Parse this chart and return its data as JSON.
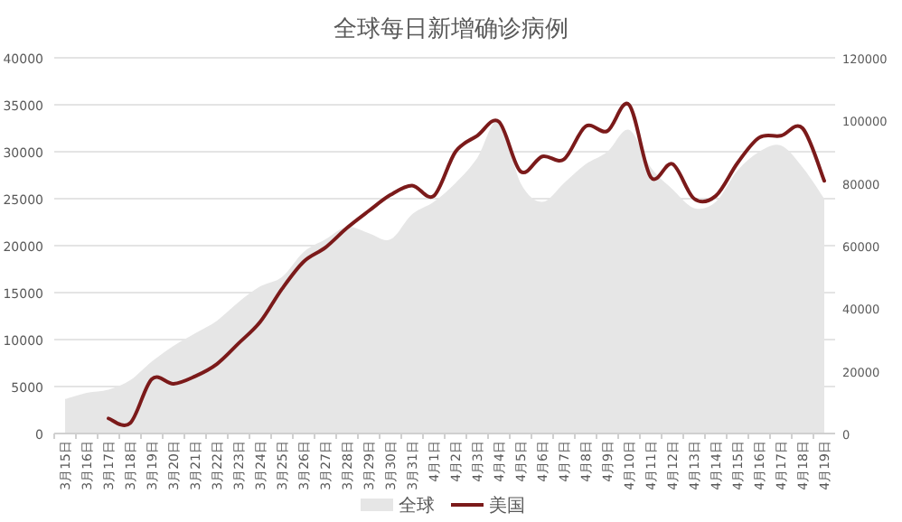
{
  "chart_data": {
    "type": "line",
    "title": "全球每日新增确诊病例",
    "categories": [
      "3月15日",
      "3月16日",
      "3月17日",
      "3月18日",
      "3月19日",
      "3月20日",
      "3月21日",
      "3月22日",
      "3月23日",
      "3月24日",
      "3月25日",
      "3月26日",
      "3月27日",
      "3月28日",
      "3月29日",
      "3月30日",
      "3月31日",
      "4月1日",
      "4月2日",
      "4月3日",
      "4月4日",
      "4月5日",
      "4月6日",
      "4月7日",
      "4月8日",
      "4月9日",
      "4月10日",
      "4月11日",
      "4月12日",
      "4月13日",
      "4月14日",
      "4月15日",
      "4月16日",
      "4月17日",
      "4月18日",
      "4月19日"
    ],
    "series": [
      {
        "name": "全球",
        "type": "area",
        "axis": "y2",
        "color": "#e6e6e6",
        "values": [
          11000,
          13000,
          14000,
          17000,
          23000,
          28000,
          32000,
          36000,
          42000,
          47000,
          50000,
          58000,
          62000,
          66000,
          64000,
          62000,
          70000,
          74000,
          80000,
          88000,
          100000,
          80000,
          74000,
          80000,
          86000,
          90000,
          97000,
          85000,
          78000,
          72000,
          74000,
          84000,
          90000,
          92000,
          85000,
          75000
        ]
      },
      {
        "name": "美国",
        "axis": "y",
        "color": "#7b1a1a",
        "values": [
          null,
          null,
          1600,
          1100,
          5800,
          5300,
          6100,
          7400,
          9600,
          11900,
          15400,
          18300,
          19800,
          21900,
          23700,
          25400,
          26400,
          25300,
          30000,
          31700,
          33200,
          27900,
          29500,
          29200,
          32700,
          32200,
          35000,
          27300,
          28700,
          25000,
          25300,
          28800,
          31500,
          31700,
          32500,
          26900
        ]
      }
    ],
    "ylim": [
      0,
      40000
    ],
    "yticks": [
      0,
      5000,
      10000,
      15000,
      20000,
      25000,
      30000,
      35000,
      40000
    ],
    "y2lim": [
      0,
      120000
    ],
    "y2ticks": [
      0,
      20000,
      40000,
      60000,
      80000,
      100000,
      120000
    ],
    "grid": "y",
    "legend": "bottom"
  }
}
